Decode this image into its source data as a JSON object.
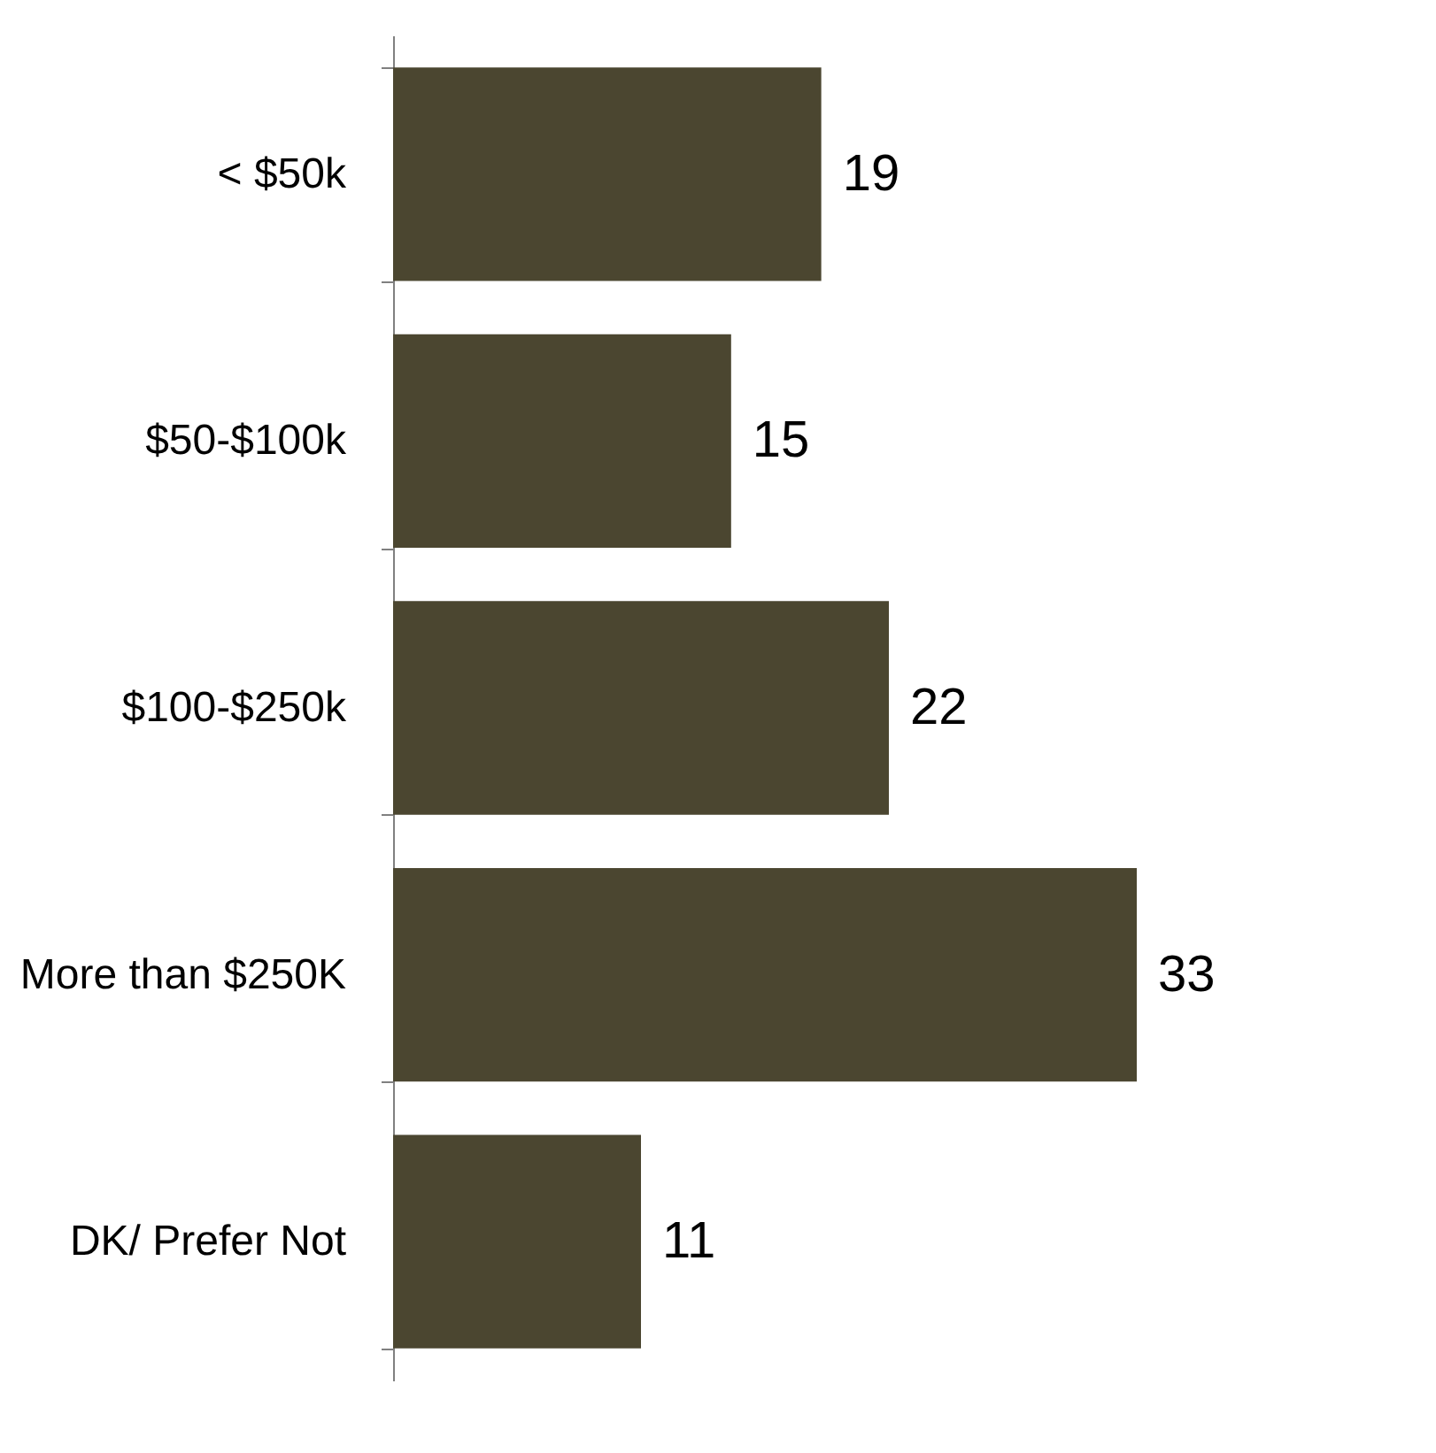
{
  "chart_data": {
    "type": "bar",
    "orientation": "horizontal",
    "categories": [
      "< $50k",
      "$50-$100k",
      "$100-$250k",
      "More than $250K",
      "DK/ Prefer Not"
    ],
    "values": [
      19,
      15,
      22,
      33,
      11
    ],
    "color": "#4b4630",
    "data_labels": true
  }
}
